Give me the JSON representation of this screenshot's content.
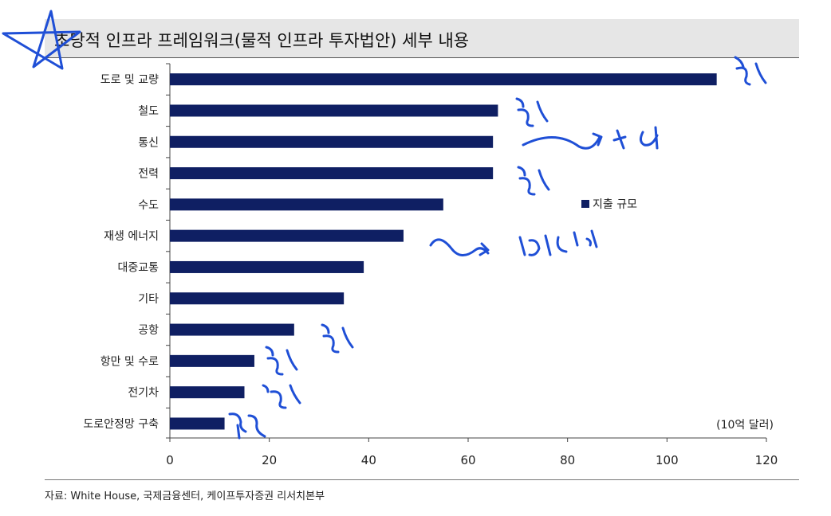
{
  "title": "초당적 인프라 프레임워크(물적 인프라 투자법안) 세부 내용",
  "unit": "(10억 달러)",
  "source": "자료: White House, 국제금융센터, 케이프투자증권 리서치본부",
  "colors": {
    "bar": "#0f1f63",
    "annotation": "#1f4fd6",
    "title_bg": "#e6e6e6"
  },
  "chart_data": {
    "type": "bar",
    "orientation": "horizontal",
    "categories": [
      "도로 및 교량",
      "철도",
      "통신",
      "전력",
      "수도",
      "재생 에너지",
      "대중교통",
      "기타",
      "공항",
      "항만 및 수로",
      "전기차",
      "도로안정망 구축"
    ],
    "series": [
      {
        "name": "지출 규모",
        "values": [
          110,
          66,
          65,
          65,
          55,
          47,
          39,
          35,
          25,
          17,
          15,
          11
        ]
      }
    ],
    "xlim": [
      0,
      120
    ],
    "xticks": [
      "0",
      "20",
      "40",
      "60",
      "80",
      "100",
      "120"
    ],
    "grid": false,
    "legend": "right-middle"
  }
}
